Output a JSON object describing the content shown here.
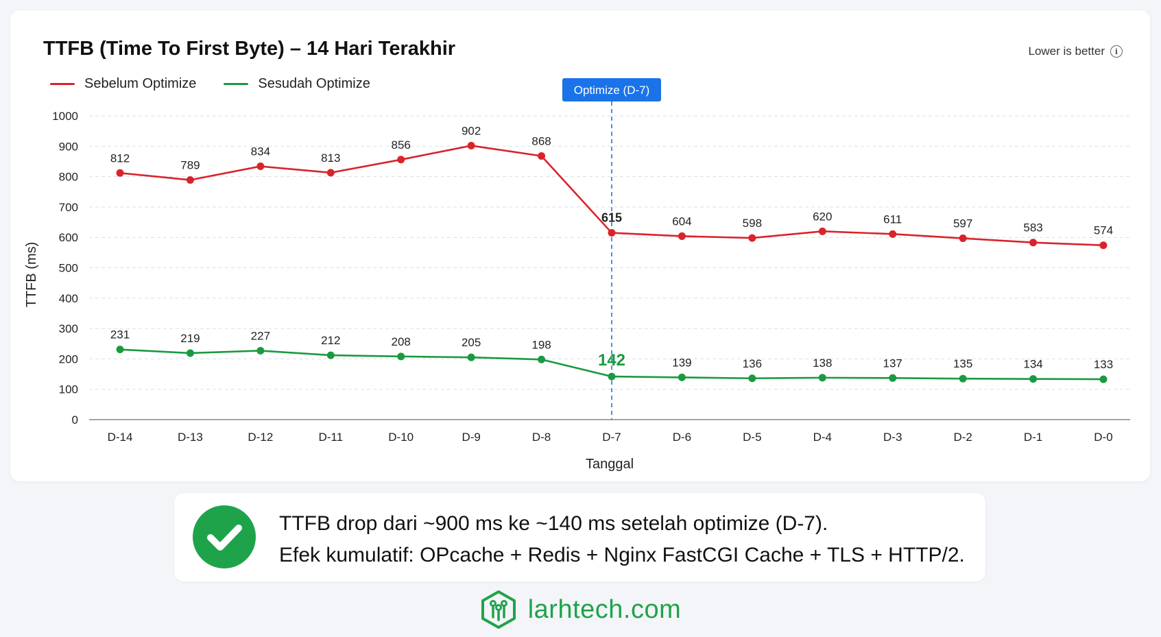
{
  "colors": {
    "before": "#d9232b",
    "after": "#1a9a3f",
    "marker": "#1a73e8",
    "grid": "#dcdfe4",
    "brand": "#1fa34a"
  },
  "header": {
    "title": "TTFB (Time To First Byte) – 14 Hari Terakhir",
    "hint": "Lower is better",
    "hint_icon": "info-icon"
  },
  "chart_data": {
    "type": "line",
    "title": "TTFB (Time To First Byte) – 14 Hari Terakhir",
    "xlabel": "Tanggal",
    "ylabel": "TTFB (ms)",
    "ylim": [
      0,
      1000
    ],
    "yticks": [
      0,
      100,
      200,
      300,
      400,
      500,
      600,
      700,
      800,
      900,
      1000
    ],
    "grid": true,
    "legend_position": "top-left",
    "categories": [
      "D-14",
      "D-13",
      "D-12",
      "D-11",
      "D-10",
      "D-9",
      "D-8",
      "D-7",
      "D-6",
      "D-5",
      "D-4",
      "D-3",
      "D-2",
      "D-1",
      "D-0"
    ],
    "series": [
      {
        "name": "Sebelum Optimize",
        "color": "#d9232b",
        "values": [
          812,
          789,
          834,
          813,
          856,
          902,
          868,
          615,
          604,
          598,
          620,
          611,
          597,
          583,
          574
        ]
      },
      {
        "name": "Sesudah Optimize",
        "color": "#1a9a3f",
        "values": [
          231,
          219,
          227,
          212,
          208,
          205,
          198,
          142,
          139,
          136,
          138,
          137,
          135,
          134,
          133
        ]
      }
    ],
    "annotation": {
      "label": "Optimize (D-7)",
      "x": "D-7"
    }
  },
  "summary": {
    "icon": "check-circle-icon",
    "line1": "TTFB drop dari ~900 ms ke ~140 ms setelah optimize (D-7).",
    "line2": "Efek kumulatif: OPcache + Redis + Nginx FastCGI Cache + TLS + HTTP/2."
  },
  "brand": {
    "text": "larhtech.com",
    "icon": "hexagon-circuit-logo-icon"
  }
}
